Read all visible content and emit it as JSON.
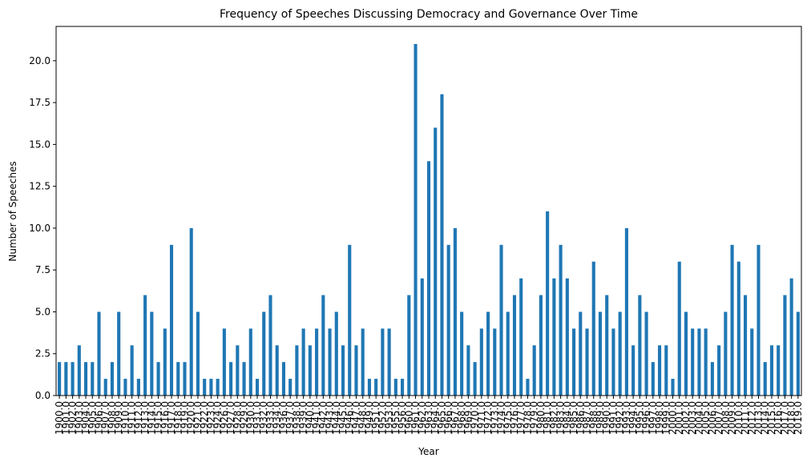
{
  "chart_data": {
    "type": "bar",
    "title": "Frequency of Speeches Discussing Democracy and Governance Over Time",
    "x_label": "Year",
    "y_label": "Number of Speeches",
    "color": "#1f77b4",
    "categories": [
      "1900.0",
      "1901.0",
      "1902.0",
      "1903.0",
      "1904.0",
      "1905.0",
      "1906.0",
      "1907.0",
      "1908.0",
      "1909.0",
      "1910.0",
      "1911.0",
      "1912.0",
      "1913.0",
      "1914.0",
      "1915.0",
      "1916.0",
      "1917.0",
      "1918.0",
      "1919.0",
      "1920.0",
      "1921.0",
      "1922.0",
      "1923.0",
      "1924.0",
      "1926.0",
      "1927.0",
      "1928.0",
      "1929.0",
      "1930.0",
      "1931.0",
      "1932.0",
      "1933.0",
      "1934.0",
      "1936.0",
      "1937.0",
      "1938.0",
      "1939.0",
      "1940.0",
      "1941.0",
      "1942.0",
      "1943.0",
      "1944.0",
      "1945.0",
      "1946.0",
      "1947.0",
      "1948.0",
      "1949.0",
      "1951.0",
      "1952.0",
      "1953.0",
      "1955.0",
      "1956.0",
      "1960.0",
      "1961.0",
      "1962.0",
      "1963.0",
      "1964.0",
      "1965.0",
      "1966.0",
      "1967.0",
      "1968.0",
      "1969.0",
      "1970.0",
      "1971.0",
      "1972.0",
      "1973.0",
      "1974.0",
      "1975.0",
      "1976.0",
      "1977.0",
      "1978.0",
      "1979.0",
      "1980.0",
      "1981.0",
      "1982.0",
      "1983.0",
      "1984.0",
      "1985.0",
      "1986.0",
      "1987.0",
      "1988.0",
      "1989.0",
      "1990.0",
      "1991.0",
      "1992.0",
      "1993.0",
      "1994.0",
      "1995.0",
      "1996.0",
      "1997.0",
      "1998.0",
      "1999.0",
      "2000.0",
      "2001.0",
      "2002.0",
      "2003.0",
      "2004.0",
      "2005.0",
      "2006.0",
      "2007.0",
      "2008.0",
      "2009.0",
      "2010.0",
      "2011.0",
      "2012.0",
      "2013.0",
      "2014.0",
      "2015.0",
      "2016.0",
      "2017.0",
      "2018.0",
      "2019.0"
    ],
    "values": [
      2,
      2,
      2,
      3,
      2,
      2,
      5,
      1,
      2,
      5,
      1,
      3,
      1,
      6,
      5,
      2,
      4,
      9,
      2,
      2,
      10,
      5,
      1,
      1,
      1,
      4,
      2,
      3,
      2,
      4,
      1,
      5,
      6,
      3,
      2,
      1,
      3,
      4,
      3,
      4,
      6,
      4,
      5,
      3,
      9,
      3,
      4,
      1,
      1,
      4,
      4,
      1,
      1,
      6,
      21,
      7,
      14,
      16,
      18,
      9,
      10,
      5,
      3,
      2,
      4,
      5,
      4,
      9,
      5,
      6,
      7,
      1,
      3,
      6,
      11,
      7,
      9,
      7,
      4,
      5,
      4,
      8,
      5,
      6,
      4,
      5,
      10,
      3,
      6,
      5,
      2,
      3,
      3,
      1,
      8,
      5,
      4,
      4,
      4,
      2,
      3,
      5,
      9,
      8,
      6,
      4,
      9,
      2,
      3,
      3,
      6,
      7,
      5
    ],
    "ylim": [
      0,
      22.05
    ],
    "yticks": [
      {
        "value": 0,
        "label": "0.0"
      },
      2.5,
      {
        "value": 5,
        "label": "5.0"
      },
      7.5,
      {
        "value": 10,
        "label": "10.0"
      },
      12.5,
      {
        "value": 15,
        "label": "15.0"
      },
      17.5,
      {
        "value": 20,
        "label": "20.0"
      }
    ]
  }
}
